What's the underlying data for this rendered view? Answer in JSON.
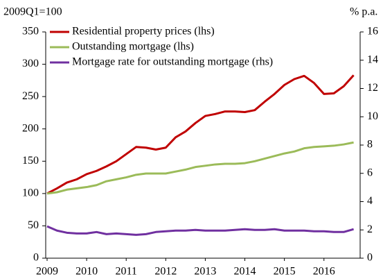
{
  "chart_data": {
    "type": "line",
    "y_label": "2009Q1=100",
    "y2_label": "% p.a.",
    "x": [
      2009,
      2009.25,
      2009.5,
      2009.75,
      2010,
      2010.25,
      2010.5,
      2010.75,
      2011,
      2011.25,
      2011.5,
      2011.75,
      2012,
      2012.25,
      2012.5,
      2012.75,
      2013,
      2013.25,
      2013.5,
      2013.75,
      2014,
      2014.25,
      2014.5,
      2014.75,
      2015,
      2015.25,
      2015.5,
      2015.75,
      2016,
      2016.25,
      2016.5,
      2016.75
    ],
    "series": [
      {
        "name": "Residential property prices (lhs)",
        "color": "#c00000",
        "values": [
          100,
          108,
          117,
          122,
          130,
          135,
          142,
          150,
          161,
          172,
          171,
          168,
          171,
          187,
          196,
          209,
          220,
          223,
          227,
          227,
          226,
          229,
          242,
          254,
          268,
          277,
          282,
          271,
          254,
          255,
          266,
          283
        ]
      },
      {
        "name": "Outstanding mortgage (lhs)",
        "color": "#9bbb59",
        "values": [
          100,
          102,
          106,
          108,
          110,
          113,
          119,
          122,
          125,
          129,
          131,
          131,
          131,
          134,
          137,
          141,
          143,
          145,
          146,
          146,
          147,
          150,
          154,
          158,
          162,
          165,
          170,
          172,
          173,
          174,
          176,
          179
        ]
      },
      {
        "name": "Mortgage rate for outstanding mortgage (rhs)",
        "color": "#7030a0",
        "axis": "y2",
        "values": [
          2.25,
          1.95,
          1.8,
          1.75,
          1.75,
          1.85,
          1.7,
          1.75,
          1.7,
          1.65,
          1.7,
          1.85,
          1.9,
          1.95,
          1.95,
          2.0,
          1.95,
          1.95,
          1.95,
          2.0,
          2.05,
          2.0,
          2.0,
          2.05,
          1.95,
          1.95,
          1.95,
          1.9,
          1.9,
          1.85,
          1.85,
          2.05
        ]
      }
    ],
    "xlim": [
      2009,
      2016.95
    ],
    "xticks": [
      2009,
      2010,
      2011,
      2012,
      2013,
      2014,
      2015,
      2016
    ],
    "ylim": [
      0,
      350
    ],
    "yticks": [
      0,
      50,
      100,
      150,
      200,
      250,
      300,
      350
    ],
    "y2lim": [
      0,
      16
    ],
    "y2ticks": [
      0,
      2,
      4,
      6,
      8,
      10,
      12,
      14,
      16
    ],
    "legend": "upper left"
  }
}
